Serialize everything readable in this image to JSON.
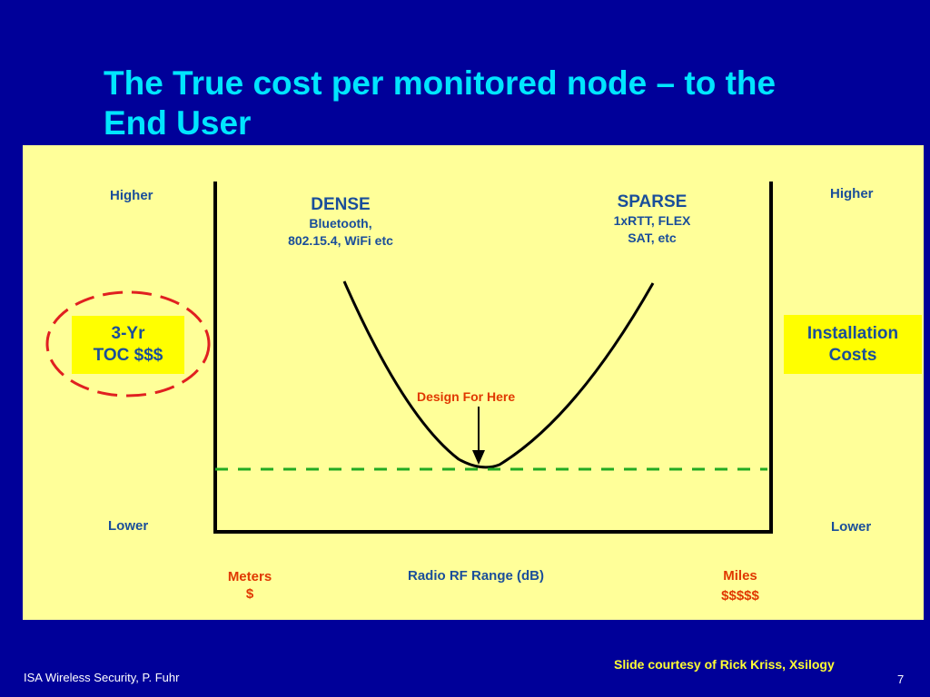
{
  "slide": {
    "title_line1": "The True cost per monitored node – to the",
    "title_line2": "End User",
    "footer_left": "ISA Wireless Security, P. Fuhr",
    "footer_credit": "Slide courtesy of Rick Kriss, Xsilogy",
    "page_number": "7"
  },
  "diagram": {
    "left_axis_top": "Higher",
    "left_axis_bottom": "Lower",
    "right_axis_top": "Higher",
    "right_axis_bottom": "Lower",
    "left_box_line1": "3-Yr",
    "left_box_line2": "TOC $$$",
    "right_box_line1": "Installation",
    "right_box_line2": "Costs",
    "dense_title": "DENSE",
    "dense_line1": "Bluetooth,",
    "dense_line2": "802.15.4, WiFi etc",
    "sparse_title": "SPARSE",
    "sparse_line1": "1xRTT, FLEX",
    "sparse_line2": "SAT, etc",
    "design_label": "Design For Here",
    "x_left_line1": "Meters",
    "x_left_line2": "$",
    "x_center": "Radio RF Range (dB)",
    "x_right_line1": "Miles",
    "x_right_line2": "$$$$$"
  },
  "colors": {
    "background": "#000099",
    "title": "#00e5ff",
    "panel": "#ffff99",
    "box": "#ffff00",
    "text": "#1a4e9a",
    "accent_red": "#e03800",
    "dashed_line": "#22aa22",
    "circle": "#e02020",
    "footer_credit": "#ffff33"
  }
}
